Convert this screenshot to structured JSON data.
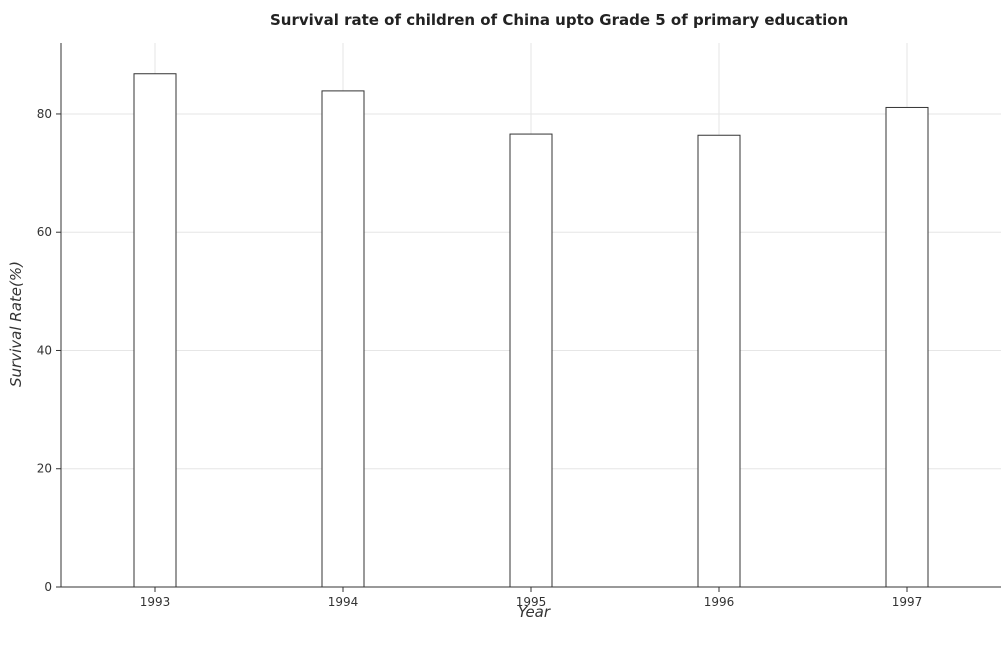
{
  "chart_data": {
    "type": "bar",
    "title": "Survival rate of children of China upto Grade 5 of primary education",
    "xlabel": "Year",
    "ylabel": "Survival Rate(%)",
    "categories": [
      "1993",
      "1994",
      "1995",
      "1996",
      "1997"
    ],
    "values": [
      86.8,
      83.9,
      76.6,
      76.4,
      81.1
    ],
    "ylim": [
      0,
      92
    ],
    "yticks": [
      0,
      20,
      40,
      60,
      80
    ],
    "ytick_labels": [
      "0",
      "20",
      "40",
      "60",
      "80"
    ],
    "grid": true,
    "legend": "none",
    "bar_color": "#ffffff",
    "bar_edge_color": "#333333"
  }
}
